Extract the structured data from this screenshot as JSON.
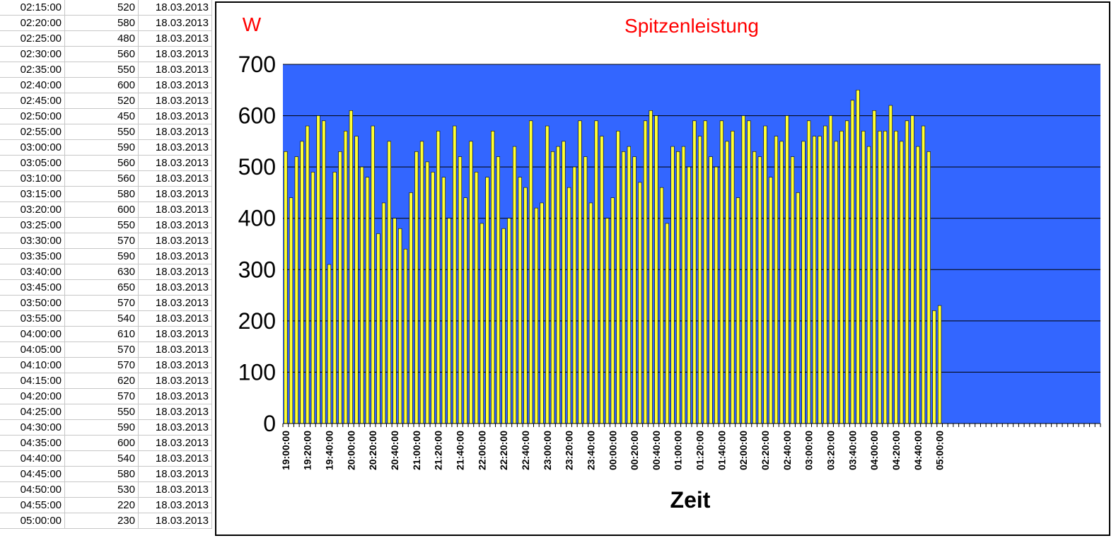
{
  "table": {
    "rows": [
      {
        "time": "02:15:00",
        "value": "520",
        "date": "18.03.2013"
      },
      {
        "time": "02:20:00",
        "value": "580",
        "date": "18.03.2013"
      },
      {
        "time": "02:25:00",
        "value": "480",
        "date": "18.03.2013"
      },
      {
        "time": "02:30:00",
        "value": "560",
        "date": "18.03.2013"
      },
      {
        "time": "02:35:00",
        "value": "550",
        "date": "18.03.2013"
      },
      {
        "time": "02:40:00",
        "value": "600",
        "date": "18.03.2013"
      },
      {
        "time": "02:45:00",
        "value": "520",
        "date": "18.03.2013"
      },
      {
        "time": "02:50:00",
        "value": "450",
        "date": "18.03.2013"
      },
      {
        "time": "02:55:00",
        "value": "550",
        "date": "18.03.2013"
      },
      {
        "time": "03:00:00",
        "value": "590",
        "date": "18.03.2013"
      },
      {
        "time": "03:05:00",
        "value": "560",
        "date": "18.03.2013"
      },
      {
        "time": "03:10:00",
        "value": "560",
        "date": "18.03.2013"
      },
      {
        "time": "03:15:00",
        "value": "580",
        "date": "18.03.2013"
      },
      {
        "time": "03:20:00",
        "value": "600",
        "date": "18.03.2013"
      },
      {
        "time": "03:25:00",
        "value": "550",
        "date": "18.03.2013"
      },
      {
        "time": "03:30:00",
        "value": "570",
        "date": "18.03.2013"
      },
      {
        "time": "03:35:00",
        "value": "590",
        "date": "18.03.2013"
      },
      {
        "time": "03:40:00",
        "value": "630",
        "date": "18.03.2013"
      },
      {
        "time": "03:45:00",
        "value": "650",
        "date": "18.03.2013"
      },
      {
        "time": "03:50:00",
        "value": "570",
        "date": "18.03.2013"
      },
      {
        "time": "03:55:00",
        "value": "540",
        "date": "18.03.2013"
      },
      {
        "time": "04:00:00",
        "value": "610",
        "date": "18.03.2013"
      },
      {
        "time": "04:05:00",
        "value": "570",
        "date": "18.03.2013"
      },
      {
        "time": "04:10:00",
        "value": "570",
        "date": "18.03.2013"
      },
      {
        "time": "04:15:00",
        "value": "620",
        "date": "18.03.2013"
      },
      {
        "time": "04:20:00",
        "value": "570",
        "date": "18.03.2013"
      },
      {
        "time": "04:25:00",
        "value": "550",
        "date": "18.03.2013"
      },
      {
        "time": "04:30:00",
        "value": "590",
        "date": "18.03.2013"
      },
      {
        "time": "04:35:00",
        "value": "600",
        "date": "18.03.2013"
      },
      {
        "time": "04:40:00",
        "value": "540",
        "date": "18.03.2013"
      },
      {
        "time": "04:45:00",
        "value": "580",
        "date": "18.03.2013"
      },
      {
        "time": "04:50:00",
        "value": "530",
        "date": "18.03.2013"
      },
      {
        "time": "04:55:00",
        "value": "220",
        "date": "18.03.2013"
      },
      {
        "time": "05:00:00",
        "value": "230",
        "date": "18.03.2013"
      }
    ]
  },
  "chart_data": {
    "type": "bar",
    "title": "Spitzenleistung",
    "ylabel": "W",
    "xlabel": "Zeit",
    "ylim": [
      0,
      700
    ],
    "yticks": [
      0,
      100,
      200,
      300,
      400,
      500,
      600,
      700
    ],
    "grid": true,
    "xtick_labels": [
      "19:00:00",
      "19:20:00",
      "19:40:00",
      "20:00:00",
      "20:20:00",
      "20:40:00",
      "21:00:00",
      "21:20:00",
      "21:40:00",
      "22:00:00",
      "22:20:00",
      "22:40:00",
      "23:00:00",
      "23:20:00",
      "23:40:00",
      "00:00:00",
      "00:20:00",
      "00:40:00",
      "01:00:00",
      "01:20:00",
      "01:40:00",
      "02:00:00",
      "02:20:00",
      "02:40:00",
      "03:00:00",
      "03:20:00",
      "03:40:00",
      "04:00:00",
      "04:20:00",
      "04:40:00",
      "05:00:00"
    ],
    "xtick_every": 4,
    "total_slots": 150,
    "values": [
      530,
      440,
      520,
      550,
      580,
      490,
      600,
      590,
      310,
      490,
      530,
      570,
      610,
      560,
      500,
      480,
      580,
      370,
      430,
      550,
      400,
      380,
      340,
      450,
      530,
      550,
      510,
      490,
      570,
      480,
      400,
      580,
      520,
      440,
      550,
      490,
      390,
      480,
      570,
      520,
      380,
      400,
      540,
      480,
      460,
      590,
      420,
      430,
      580,
      530,
      540,
      550,
      460,
      500,
      590,
      520,
      430,
      590,
      560,
      400,
      440,
      570,
      530,
      540,
      520,
      470,
      590,
      610,
      600,
      460,
      390,
      540,
      530,
      540,
      500,
      590,
      560,
      590,
      520,
      500,
      590,
      550,
      570,
      440,
      600,
      590,
      530,
      520,
      580,
      480,
      560,
      550,
      600,
      520,
      450,
      550,
      590,
      560,
      560,
      580,
      600,
      550,
      570,
      590,
      630,
      650,
      570,
      540,
      610,
      570,
      570,
      620,
      570,
      550,
      590,
      600,
      540,
      580,
      530,
      220,
      230
    ],
    "colors": {
      "plot_bg": "#3366ff",
      "bar": "#ffff33",
      "bar_edge": "#000000",
      "title": "#ff0000",
      "grid": "#000000"
    }
  }
}
